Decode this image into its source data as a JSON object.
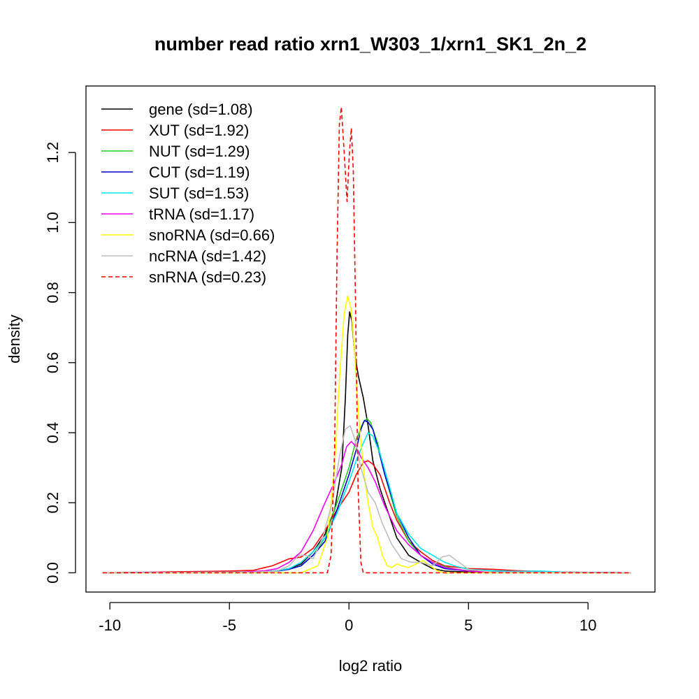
{
  "chart_data": {
    "type": "line",
    "title": "number read ratio xrn1_W303_1/xrn1_SK1_2n_2",
    "xlabel": "log2 ratio",
    "ylabel": "density",
    "xlim": [
      -11,
      12.8
    ],
    "ylim": [
      -0.055,
      1.39
    ],
    "xticks": [
      -10,
      -5,
      0,
      5,
      10
    ],
    "xtick_labels": [
      "-10",
      "-5",
      "0",
      "5",
      "10"
    ],
    "yticks": [
      0.0,
      0.2,
      0.4,
      0.6,
      0.8,
      1.0,
      1.2
    ],
    "ytick_labels": [
      "0.0",
      "0.2",
      "0.4",
      "0.6",
      "0.8",
      "1.0",
      "1.2"
    ],
    "grid": false,
    "legend_position": "top-left",
    "series": [
      {
        "name": "gene (sd=1.08)",
        "color": "#000000",
        "dash": "solid",
        "points": [
          [
            -10.3,
            0
          ],
          [
            -4,
            0.002
          ],
          [
            -3,
            0.006
          ],
          [
            -2.5,
            0.012
          ],
          [
            -2,
            0.025
          ],
          [
            -1.5,
            0.06
          ],
          [
            -1,
            0.11
          ],
          [
            -0.6,
            0.18
          ],
          [
            -0.3,
            0.3
          ],
          [
            -0.15,
            0.5
          ],
          [
            -0.05,
            0.68
          ],
          [
            0.03,
            0.745
          ],
          [
            0.12,
            0.72
          ],
          [
            0.25,
            0.62
          ],
          [
            0.4,
            0.56
          ],
          [
            0.6,
            0.5
          ],
          [
            0.8,
            0.42
          ],
          [
            1.0,
            0.32
          ],
          [
            1.3,
            0.24
          ],
          [
            1.7,
            0.16
          ],
          [
            2.0,
            0.1
          ],
          [
            2.5,
            0.05
          ],
          [
            3.0,
            0.03
          ],
          [
            3.5,
            0.012
          ],
          [
            4,
            0.005
          ],
          [
            5,
            0.002
          ],
          [
            11.8,
            0
          ]
        ]
      },
      {
        "name": "XUT (sd=1.92)",
        "color": "#ff0000",
        "dash": "solid",
        "points": [
          [
            -10.3,
            0
          ],
          [
            -8,
            0.002
          ],
          [
            -6,
            0.004
          ],
          [
            -5,
            0.005
          ],
          [
            -4,
            0.007
          ],
          [
            -3.2,
            0.02
          ],
          [
            -2.5,
            0.04
          ],
          [
            -2,
            0.045
          ],
          [
            -1.5,
            0.07
          ],
          [
            -1,
            0.12
          ],
          [
            -0.5,
            0.18
          ],
          [
            0,
            0.23
          ],
          [
            0.3,
            0.28
          ],
          [
            0.6,
            0.315
          ],
          [
            0.8,
            0.32
          ],
          [
            1.0,
            0.31
          ],
          [
            1.3,
            0.28
          ],
          [
            1.7,
            0.2
          ],
          [
            2,
            0.15
          ],
          [
            2.5,
            0.09
          ],
          [
            3,
            0.06
          ],
          [
            3.5,
            0.035
          ],
          [
            4,
            0.02
          ],
          [
            5,
            0.012
          ],
          [
            6,
            0.01
          ],
          [
            7,
            0.006
          ],
          [
            8,
            0.004
          ],
          [
            9,
            0.002
          ],
          [
            11.8,
            0
          ]
        ]
      },
      {
        "name": "NUT (sd=1.29)",
        "color": "#22cc22",
        "dash": "solid",
        "points": [
          [
            -10.3,
            0
          ],
          [
            -4,
            0.002
          ],
          [
            -3,
            0.005
          ],
          [
            -2.5,
            0.01
          ],
          [
            -2,
            0.02
          ],
          [
            -1.5,
            0.05
          ],
          [
            -1,
            0.1
          ],
          [
            -0.5,
            0.2
          ],
          [
            0,
            0.3
          ],
          [
            0.3,
            0.38
          ],
          [
            0.6,
            0.43
          ],
          [
            0.75,
            0.44
          ],
          [
            0.9,
            0.43
          ],
          [
            1.2,
            0.37
          ],
          [
            1.5,
            0.28
          ],
          [
            2,
            0.16
          ],
          [
            2.5,
            0.09
          ],
          [
            3,
            0.05
          ],
          [
            3.5,
            0.03
          ],
          [
            4,
            0.018
          ],
          [
            4.5,
            0.01
          ],
          [
            5,
            0.006
          ],
          [
            6,
            0.003
          ],
          [
            7,
            0.002
          ],
          [
            11.8,
            0
          ]
        ]
      },
      {
        "name": "CUT (sd=1.19)",
        "color": "#0000cc",
        "dash": "solid",
        "points": [
          [
            -10.3,
            0
          ],
          [
            -4,
            0.002
          ],
          [
            -3,
            0.005
          ],
          [
            -2.5,
            0.01
          ],
          [
            -2,
            0.02
          ],
          [
            -1.5,
            0.05
          ],
          [
            -1,
            0.09
          ],
          [
            -0.5,
            0.18
          ],
          [
            0,
            0.28
          ],
          [
            0.3,
            0.35
          ],
          [
            0.5,
            0.41
          ],
          [
            0.65,
            0.435
          ],
          [
            0.8,
            0.43
          ],
          [
            1.0,
            0.41
          ],
          [
            1.2,
            0.36
          ],
          [
            1.5,
            0.28
          ],
          [
            2,
            0.17
          ],
          [
            2.5,
            0.1
          ],
          [
            3,
            0.05
          ],
          [
            3.5,
            0.025
          ],
          [
            4,
            0.012
          ],
          [
            5,
            0.005
          ],
          [
            6,
            0.002
          ],
          [
            11.8,
            0
          ]
        ]
      },
      {
        "name": "SUT (sd=1.53)",
        "color": "#00e5ee",
        "dash": "solid",
        "points": [
          [
            -10.3,
            0
          ],
          [
            -5,
            0.002
          ],
          [
            -4,
            0.003
          ],
          [
            -3,
            0.006
          ],
          [
            -2.5,
            0.012
          ],
          [
            -2,
            0.03
          ],
          [
            -1.5,
            0.06
          ],
          [
            -1,
            0.1
          ],
          [
            -0.5,
            0.17
          ],
          [
            0,
            0.26
          ],
          [
            0.3,
            0.32
          ],
          [
            0.6,
            0.37
          ],
          [
            0.8,
            0.4
          ],
          [
            1.0,
            0.39
          ],
          [
            1.3,
            0.34
          ],
          [
            1.6,
            0.27
          ],
          [
            2,
            0.17
          ],
          [
            2.5,
            0.11
          ],
          [
            3,
            0.07
          ],
          [
            3.5,
            0.05
          ],
          [
            4,
            0.03
          ],
          [
            4.5,
            0.018
          ],
          [
            5,
            0.01
          ],
          [
            6,
            0.006
          ],
          [
            7,
            0.004
          ],
          [
            8,
            0.005
          ],
          [
            9,
            0.002
          ],
          [
            11.8,
            0
          ]
        ]
      },
      {
        "name": "tRNA (sd=1.17)",
        "color": "#ee00ee",
        "dash": "solid",
        "points": [
          [
            -10.3,
            0
          ],
          [
            -4.5,
            0.002
          ],
          [
            -3.5,
            0.006
          ],
          [
            -3,
            0.012
          ],
          [
            -2.5,
            0.03
          ],
          [
            -2,
            0.06
          ],
          [
            -1.5,
            0.12
          ],
          [
            -1.0,
            0.2
          ],
          [
            -0.6,
            0.26
          ],
          [
            -0.3,
            0.31
          ],
          [
            -0.1,
            0.36
          ],
          [
            0.1,
            0.375
          ],
          [
            0.3,
            0.36
          ],
          [
            0.5,
            0.33
          ],
          [
            0.8,
            0.3
          ],
          [
            1.1,
            0.26
          ],
          [
            1.5,
            0.19
          ],
          [
            2,
            0.12
          ],
          [
            2.5,
            0.08
          ],
          [
            3,
            0.05
          ],
          [
            3.5,
            0.03
          ],
          [
            4,
            0.015
          ],
          [
            5,
            0.005
          ],
          [
            6,
            0.002
          ],
          [
            11.8,
            0
          ]
        ]
      },
      {
        "name": "snoRNA (sd=0.66)",
        "color": "#ffff00",
        "dash": "solid",
        "points": [
          [
            -10.3,
            0
          ],
          [
            -2,
            0
          ],
          [
            -1.3,
            0.02
          ],
          [
            -0.9,
            0.1
          ],
          [
            -0.6,
            0.3
          ],
          [
            -0.4,
            0.55
          ],
          [
            -0.2,
            0.74
          ],
          [
            -0.05,
            0.79
          ],
          [
            0.1,
            0.75
          ],
          [
            0.25,
            0.62
          ],
          [
            0.4,
            0.45
          ],
          [
            0.6,
            0.3
          ],
          [
            0.8,
            0.2
          ],
          [
            1.0,
            0.13
          ],
          [
            1.2,
            0.1
          ],
          [
            1.4,
            0.05
          ],
          [
            1.6,
            0.02
          ],
          [
            1.8,
            0.015
          ],
          [
            2.0,
            0.025
          ],
          [
            2.2,
            0.02
          ],
          [
            2.5,
            0.015
          ],
          [
            2.8,
            0.025
          ],
          [
            3.1,
            0.035
          ],
          [
            3.4,
            0.02
          ],
          [
            3.7,
            0.005
          ],
          [
            4,
            0
          ],
          [
            11.8,
            0
          ]
        ]
      },
      {
        "name": "ncRNA (sd=1.42)",
        "color": "#bebebe",
        "dash": "solid",
        "points": [
          [
            -10.3,
            0
          ],
          [
            -4,
            0.002
          ],
          [
            -3,
            0.005
          ],
          [
            -2.5,
            0.02
          ],
          [
            -2.1,
            0.05
          ],
          [
            -1.8,
            0.05
          ],
          [
            -1.5,
            0.04
          ],
          [
            -1.1,
            0.1
          ],
          [
            -0.7,
            0.2
          ],
          [
            -0.4,
            0.33
          ],
          [
            -0.15,
            0.41
          ],
          [
            0.05,
            0.42
          ],
          [
            0.25,
            0.38
          ],
          [
            0.5,
            0.3
          ],
          [
            0.8,
            0.23
          ],
          [
            1.1,
            0.2
          ],
          [
            1.4,
            0.14
          ],
          [
            1.8,
            0.08
          ],
          [
            2.2,
            0.04
          ],
          [
            2.6,
            0.03
          ],
          [
            3,
            0.03
          ],
          [
            3.5,
            0.02
          ],
          [
            3.9,
            0.045
          ],
          [
            4.2,
            0.05
          ],
          [
            4.6,
            0.03
          ],
          [
            5,
            0.01
          ],
          [
            6,
            0.002
          ],
          [
            11.8,
            0
          ]
        ]
      },
      {
        "name": "snRNA (sd=0.23)",
        "color": "#ff0000",
        "dash": "dashed",
        "points": [
          [
            -10.3,
            0
          ],
          [
            -0.9,
            0
          ],
          [
            -0.75,
            0.05
          ],
          [
            -0.6,
            0.35
          ],
          [
            -0.5,
            0.9
          ],
          [
            -0.4,
            1.28
          ],
          [
            -0.32,
            1.33
          ],
          [
            -0.2,
            1.2
          ],
          [
            -0.08,
            1.06
          ],
          [
            0.02,
            1.2
          ],
          [
            0.1,
            1.27
          ],
          [
            0.18,
            1.15
          ],
          [
            0.28,
            0.75
          ],
          [
            0.38,
            0.25
          ],
          [
            0.5,
            0.03
          ],
          [
            0.6,
            0
          ],
          [
            11.8,
            0
          ]
        ]
      }
    ]
  }
}
